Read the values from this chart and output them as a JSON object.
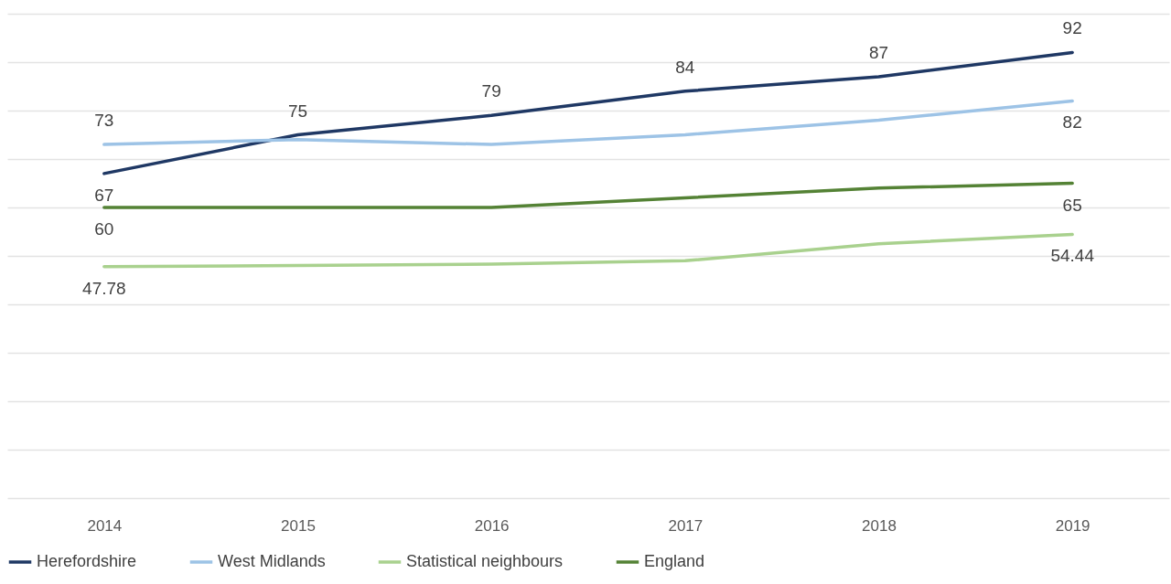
{
  "chart_data": {
    "type": "line",
    "categories": [
      "2014",
      "2015",
      "2016",
      "2017",
      "2018",
      "2019"
    ],
    "series": [
      {
        "name": "Herefordshire",
        "color": "#1f3864",
        "values": [
          67,
          75,
          79,
          84,
          87,
          92
        ],
        "value_labels": [
          "67",
          "75",
          "79",
          "84",
          "87",
          "92"
        ]
      },
      {
        "name": "West Midlands",
        "color": "#9dc3e6",
        "values": [
          73,
          74,
          73,
          75,
          78,
          82
        ],
        "value_labels": [
          "73",
          null,
          null,
          null,
          null,
          "82"
        ]
      },
      {
        "name": "Statistical neighbours",
        "color": "#a9d18e",
        "values": [
          47.78,
          48,
          48.3,
          49,
          52.5,
          54.44
        ],
        "value_labels": [
          "47.78",
          null,
          null,
          null,
          null,
          "54.44"
        ]
      },
      {
        "name": "England",
        "color": "#548235",
        "values": [
          60,
          60,
          60,
          62,
          64,
          65
        ],
        "value_labels": [
          "60",
          null,
          null,
          null,
          null,
          "65"
        ]
      }
    ],
    "ylim": [
      0,
      100
    ],
    "yticks": [
      {
        "value": 0,
        "label": null
      },
      {
        "value": 10,
        "label": null
      },
      {
        "value": 20,
        "label": null
      },
      {
        "value": 30,
        "label": null
      },
      {
        "value": 40,
        "label": null
      },
      {
        "value": 50,
        "label": null
      },
      {
        "value": 60,
        "label": null
      },
      {
        "value": 70,
        "label": null
      },
      {
        "value": 80,
        "label": null
      },
      {
        "value": 90,
        "label": null
      },
      {
        "value": 100,
        "label": null
      }
    ],
    "tick_labels": "x",
    "grid": "y",
    "legend": "bottom",
    "marker": "none",
    "line_style": "solid"
  }
}
